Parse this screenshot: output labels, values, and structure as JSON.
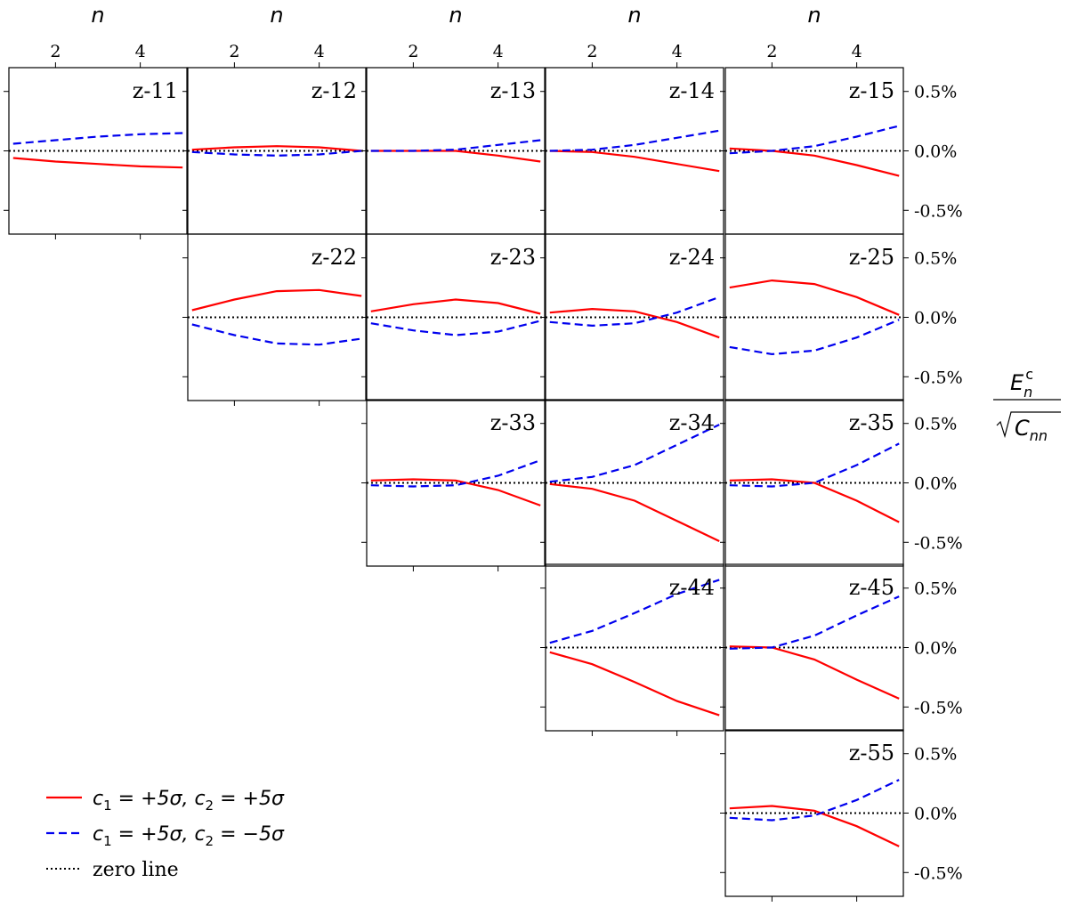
{
  "chart_data": {
    "type": "line",
    "layout": "upper-triangular grid of 15 panels (5 columns x 5 rows)",
    "x_label": "n",
    "x_ticks": [
      2,
      4
    ],
    "x_range": [
      0.9,
      5.1
    ],
    "y_label_tex": "E_n^c / sqrt(C_nn)",
    "y_ticks": [
      0.5,
      0.0,
      -0.5
    ],
    "y_tick_labels": [
      "0.5%",
      "0.0%",
      "-0.5%"
    ],
    "y_range": [
      -0.7,
      0.7
    ],
    "zero_line": true,
    "legend_placement": "lower-left",
    "colors": {
      "series_1": "#ff0000",
      "series_2": "#0000ee",
      "zero": "#000000"
    },
    "x": [
      1,
      2,
      3,
      4,
      5
    ],
    "series_meta": [
      {
        "key": "s1",
        "style": "solid",
        "color": "#ff0000",
        "label_parts": [
          "c",
          "1",
          " = +5σ, ",
          "c",
          "2",
          " = +5σ"
        ]
      },
      {
        "key": "s2",
        "style": "dashed",
        "color": "#0000ee",
        "label_parts": [
          "c",
          "1",
          " = +5σ, ",
          "c",
          "2",
          " = −5σ"
        ]
      },
      {
        "key": "zero",
        "style": "dotted",
        "color": "#000000",
        "label": "zero line"
      }
    ],
    "panels": [
      {
        "label": "z-11",
        "row": 0,
        "col": 0,
        "s1": [
          -0.06,
          -0.09,
          -0.11,
          -0.13,
          -0.14
        ],
        "s2": [
          0.06,
          0.09,
          0.12,
          0.14,
          0.15
        ]
      },
      {
        "label": "z-12",
        "row": 0,
        "col": 1,
        "s1": [
          0.01,
          0.03,
          0.04,
          0.03,
          0.0
        ],
        "s2": [
          -0.01,
          -0.03,
          -0.04,
          -0.03,
          0.0
        ]
      },
      {
        "label": "z-13",
        "row": 0,
        "col": 2,
        "s1": [
          0.0,
          0.0,
          0.0,
          -0.04,
          -0.09
        ],
        "s2": [
          0.0,
          0.0,
          0.01,
          0.05,
          0.09
        ]
      },
      {
        "label": "z-14",
        "row": 0,
        "col": 3,
        "s1": [
          0.0,
          -0.01,
          -0.05,
          -0.11,
          -0.17
        ],
        "s2": [
          0.0,
          0.01,
          0.05,
          0.11,
          0.17
        ]
      },
      {
        "label": "z-15",
        "row": 0,
        "col": 4,
        "s1": [
          0.02,
          0.0,
          -0.04,
          -0.12,
          -0.21
        ],
        "s2": [
          -0.02,
          0.0,
          0.04,
          0.12,
          0.21
        ]
      },
      {
        "label": "z-22",
        "row": 1,
        "col": 1,
        "s1": [
          0.06,
          0.15,
          0.22,
          0.23,
          0.18
        ],
        "s2": [
          -0.06,
          -0.15,
          -0.22,
          -0.23,
          -0.18
        ]
      },
      {
        "label": "z-23",
        "row": 1,
        "col": 2,
        "s1": [
          0.05,
          0.11,
          0.15,
          0.12,
          0.03
        ],
        "s2": [
          -0.05,
          -0.11,
          -0.15,
          -0.12,
          -0.03
        ]
      },
      {
        "label": "z-24",
        "row": 1,
        "col": 3,
        "s1": [
          0.04,
          0.07,
          0.05,
          -0.04,
          -0.17
        ],
        "s2": [
          -0.04,
          -0.07,
          -0.05,
          0.04,
          0.17
        ]
      },
      {
        "label": "z-25",
        "row": 1,
        "col": 4,
        "s1": [
          0.25,
          0.31,
          0.28,
          0.17,
          0.02
        ],
        "s2": [
          -0.25,
          -0.31,
          -0.28,
          -0.17,
          -0.02
        ]
      },
      {
        "label": "z-33",
        "row": 2,
        "col": 2,
        "s1": [
          0.02,
          0.03,
          0.02,
          -0.06,
          -0.19
        ],
        "s2": [
          -0.02,
          -0.03,
          -0.02,
          0.06,
          0.19
        ]
      },
      {
        "label": "z-34",
        "row": 2,
        "col": 3,
        "s1": [
          -0.01,
          -0.05,
          -0.15,
          -0.32,
          -0.49
        ],
        "s2": [
          0.01,
          0.05,
          0.15,
          0.32,
          0.49
        ]
      },
      {
        "label": "z-35",
        "row": 2,
        "col": 4,
        "s1": [
          0.02,
          0.03,
          0.0,
          -0.15,
          -0.33
        ],
        "s2": [
          -0.02,
          -0.03,
          0.0,
          0.15,
          0.33
        ]
      },
      {
        "label": "z-44",
        "row": 3,
        "col": 3,
        "s1": [
          -0.04,
          -0.14,
          -0.29,
          -0.45,
          -0.57
        ],
        "s2": [
          0.04,
          0.14,
          0.29,
          0.45,
          0.57
        ]
      },
      {
        "label": "z-45",
        "row": 3,
        "col": 4,
        "s1": [
          0.01,
          0.0,
          -0.1,
          -0.27,
          -0.43
        ],
        "s2": [
          -0.01,
          0.0,
          0.1,
          0.27,
          0.43
        ]
      },
      {
        "label": "z-55",
        "row": 4,
        "col": 4,
        "s1": [
          0.04,
          0.06,
          0.02,
          -0.11,
          -0.28
        ],
        "s2": [
          -0.04,
          -0.06,
          -0.02,
          0.11,
          0.28
        ]
      }
    ]
  }
}
